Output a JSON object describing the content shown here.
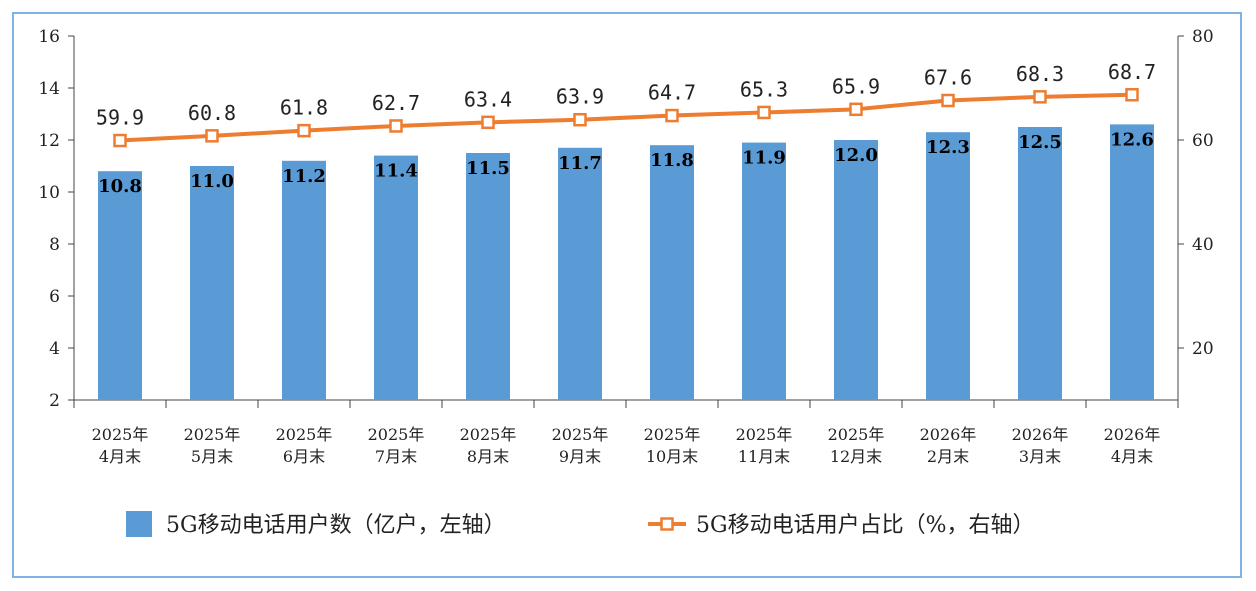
{
  "chart_data": {
    "type": "bar",
    "categories": [
      [
        "2025年",
        "4月末"
      ],
      [
        "2025年",
        "5月末"
      ],
      [
        "2025年",
        "6月末"
      ],
      [
        "2025年",
        "7月末"
      ],
      [
        "2025年",
        "8月末"
      ],
      [
        "2025年",
        "9月末"
      ],
      [
        "2025年",
        "10月末"
      ],
      [
        "2025年",
        "11月末"
      ],
      [
        "2025年",
        "12月末"
      ],
      [
        "2026年",
        "2月末"
      ],
      [
        "2026年",
        "3月末"
      ],
      [
        "2026年",
        "4月末"
      ]
    ],
    "series": [
      {
        "name": "5G移动电话用户数（亿户，左轴）",
        "type": "bar",
        "axis": "left",
        "values": [
          10.8,
          11.0,
          11.2,
          11.4,
          11.5,
          11.7,
          11.8,
          11.9,
          12.0,
          12.3,
          12.5,
          12.6
        ],
        "labels": [
          "10.8",
          "11.0",
          "11.2",
          "11.4",
          "11.5",
          "11.7",
          "11.8",
          "11.9",
          "12.0",
          "12.3",
          "12.5",
          "12.6"
        ],
        "color": "#5b9bd5"
      },
      {
        "name": "5G移动电话用户占比（%，右轴）",
        "type": "line",
        "axis": "right",
        "values": [
          59.9,
          60.8,
          61.8,
          62.7,
          63.4,
          63.9,
          64.7,
          65.3,
          65.9,
          67.6,
          68.3,
          68.7
        ],
        "labels": [
          "59.9",
          "60.8",
          "61.8",
          "62.7",
          "63.4",
          "63.9",
          "64.7",
          "65.3",
          "65.9",
          "67.6",
          "68.3",
          "68.7"
        ],
        "color": "#ed7d31"
      }
    ],
    "y_left": {
      "ylim": [
        2,
        16
      ],
      "ticks": [
        "2",
        "4",
        "6",
        "8",
        "10",
        "12",
        "14",
        "16"
      ]
    },
    "y_right": {
      "ylim": [
        10,
        80
      ],
      "ticks": [
        "20",
        "40",
        "60",
        "80"
      ]
    },
    "grid": false,
    "legend_position": "bottom"
  }
}
